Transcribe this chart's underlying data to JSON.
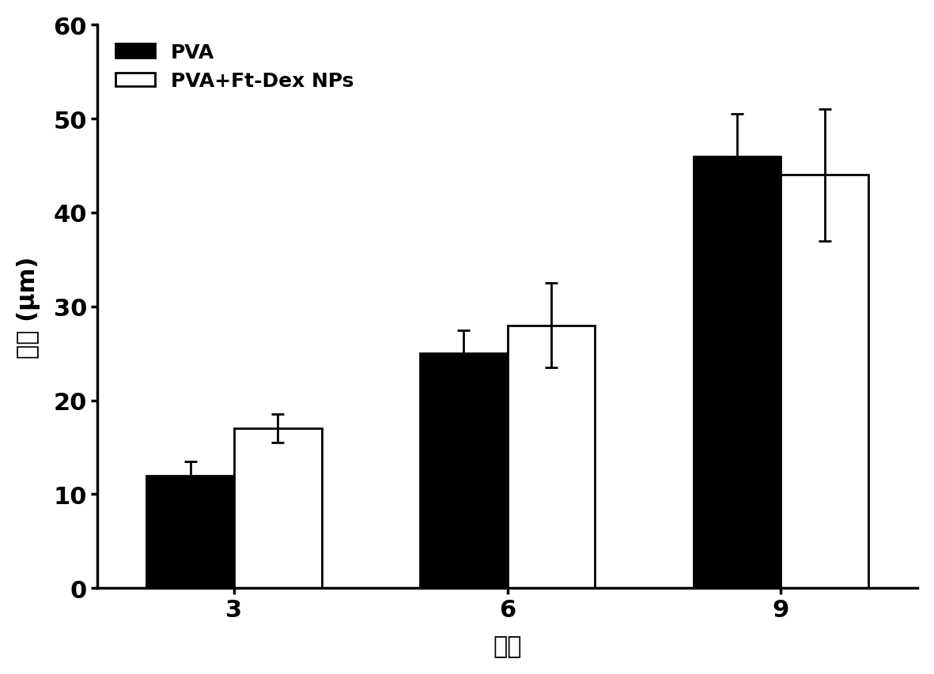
{
  "categories": [
    "3",
    "6",
    "9"
  ],
  "pva_values": [
    12,
    25,
    46
  ],
  "pva_errors": [
    1.5,
    2.5,
    4.5
  ],
  "pvadex_values": [
    17,
    28,
    44
  ],
  "pvadex_errors": [
    1.5,
    4.5,
    7.0
  ],
  "pva_color": "#000000",
  "pvadex_color": "#ffffff",
  "bar_edge_color": "#000000",
  "ylabel": "厨度 (μm)",
  "xlabel": "层数",
  "ylim": [
    0,
    60
  ],
  "yticks": [
    0,
    10,
    20,
    30,
    40,
    50,
    60
  ],
  "legend_labels": [
    "PVA",
    "PVA+Ft-Dex NPs"
  ],
  "bar_width": 0.32,
  "label_fontsize": 22,
  "tick_fontsize": 22,
  "legend_fontsize": 18
}
